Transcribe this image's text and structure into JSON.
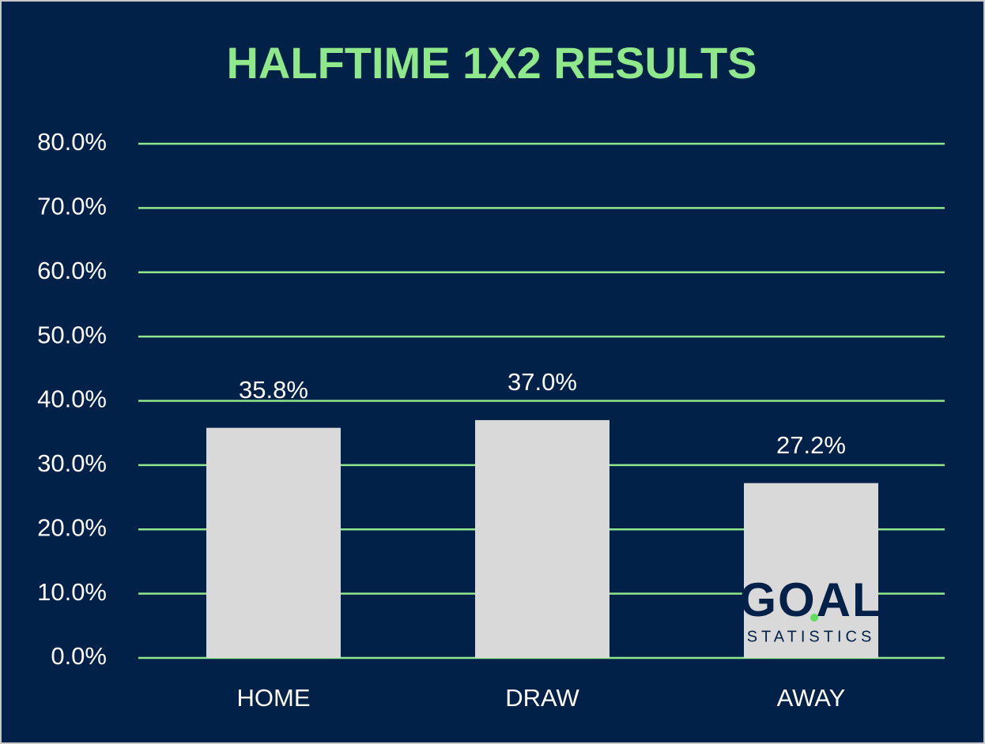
{
  "chart_data": {
    "type": "bar",
    "title": "HALFTIME 1X2 RESULTS",
    "categories": [
      "HOME",
      "DRAW",
      "AWAY"
    ],
    "values": [
      35.8,
      37.0,
      27.2
    ],
    "value_labels": [
      "35.8%",
      "37.0%",
      "27.2%"
    ],
    "color": "#d9d9d9",
    "ylim": [
      0,
      80
    ],
    "yticks": [
      {
        "value": 0,
        "label": "0.0%"
      },
      {
        "value": 10,
        "label": "10.0%"
      },
      {
        "value": 20,
        "label": "20.0%"
      },
      {
        "value": 30,
        "label": "30.0%"
      },
      {
        "value": 40,
        "label": "40.0%"
      },
      {
        "value": 50,
        "label": "50.0%"
      },
      {
        "value": 60,
        "label": "60.0%"
      },
      {
        "value": 70,
        "label": "70.0%"
      },
      {
        "value": 80,
        "label": "80.0%"
      }
    ],
    "grid": true,
    "logo": {
      "name": "GOAL",
      "tagline": "STATISTICS"
    }
  }
}
